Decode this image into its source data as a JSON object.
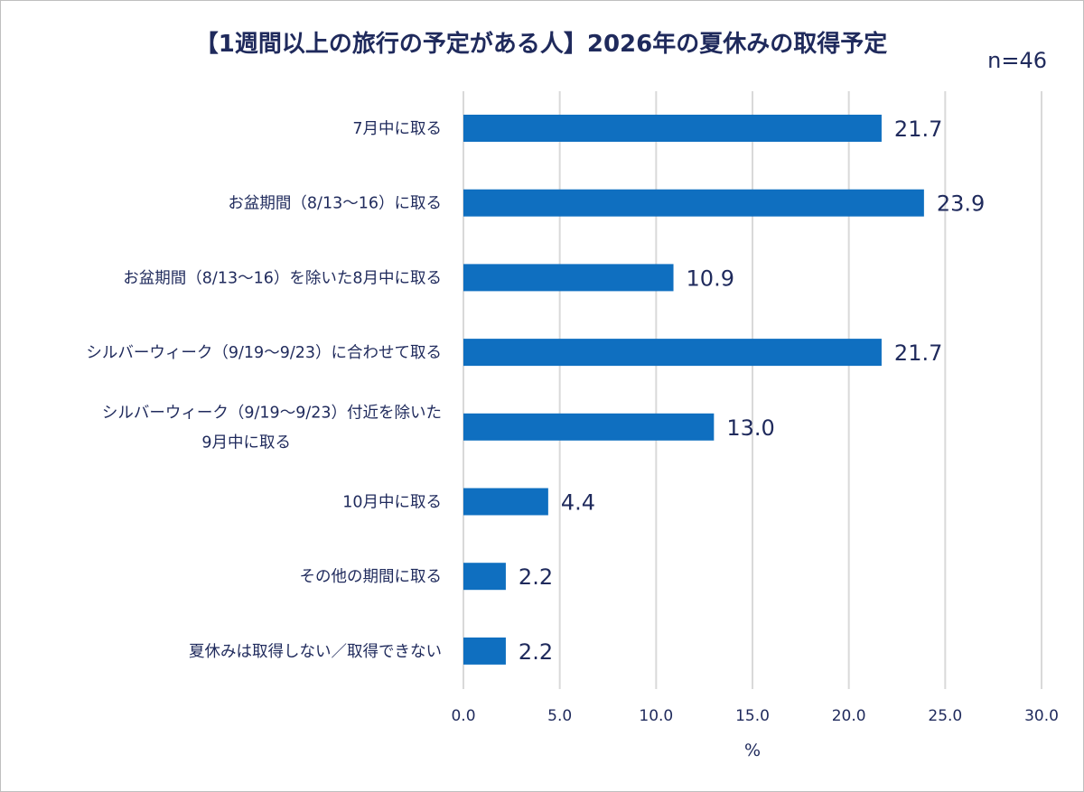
{
  "chart_data": {
    "type": "bar",
    "orientation": "horizontal",
    "title": "【1週間以上の旅行の予定がある人】2026年の夏休みの取得予定",
    "sample_size": "n=46",
    "categories": [
      [
        "7月中に取る"
      ],
      [
        "お盆期間（8/13～16）に取る"
      ],
      [
        "お盆期間（8/13～16）を除いた8月中に取る"
      ],
      [
        "シルバーウィーク（9/19～9/23）に合わせて取る"
      ],
      [
        "シルバーウィーク（9/19～9/23）付近を除いた",
        "9月中に取る"
      ],
      [
        "10月中に取る"
      ],
      [
        "その他の期間に取る"
      ],
      [
        "夏休みは取得しない／取得できない"
      ]
    ],
    "values": [
      21.7,
      23.9,
      10.9,
      21.7,
      13.0,
      4.4,
      2.2,
      2.2
    ],
    "value_labels": [
      "21.7",
      "23.9",
      "10.9",
      "21.7",
      "13.0",
      "4.4",
      "2.2",
      "2.2"
    ],
    "xlim": [
      0,
      30
    ],
    "ticks": [
      "0.0",
      "5.0",
      "10.0",
      "15.0",
      "20.0",
      "25.0",
      "30.0"
    ],
    "tick_values": [
      0,
      5,
      10,
      15,
      20,
      25,
      30
    ],
    "xlabel": "%",
    "grid": true,
    "legend": "none",
    "colors": {
      "bar": "#0f6fc0",
      "text": "#1f2a5c",
      "grid": "#d9d9d9"
    }
  }
}
